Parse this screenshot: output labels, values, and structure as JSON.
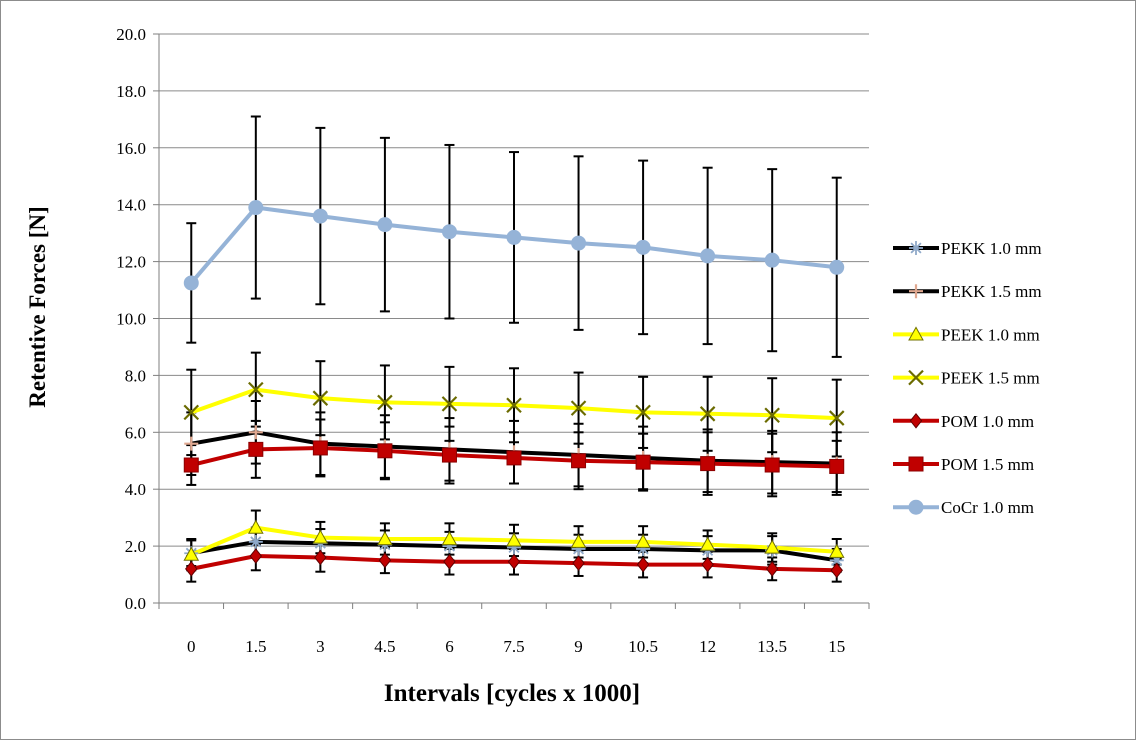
{
  "chart_data": {
    "type": "line",
    "title": "",
    "xlabel": "Intervals [cycles x 1000]",
    "ylabel": "Retentive Forces [N]",
    "categories": [
      "0",
      "1.5",
      "3",
      "4.5",
      "6",
      "7.5",
      "9",
      "10.5",
      "12",
      "13.5",
      "15"
    ],
    "ylim": [
      0,
      20
    ],
    "yticks": [
      "0.0",
      "2.0",
      "4.0",
      "6.0",
      "8.0",
      "10.0",
      "12.0",
      "14.0",
      "16.0",
      "18.0",
      "20.0"
    ],
    "grid": "horizontal",
    "legend_position": "right",
    "series": [
      {
        "name": "PEKK 1.0 mm",
        "color": "#000000",
        "marker": "asterisk",
        "marker_color": "#8fa9c9",
        "values": [
          1.75,
          2.15,
          2.1,
          2.05,
          2.0,
          1.95,
          1.9,
          1.9,
          1.85,
          1.85,
          1.5
        ],
        "error": [
          0.45,
          0.5,
          0.5,
          0.5,
          0.5,
          0.5,
          0.5,
          0.5,
          0.5,
          0.5,
          0.4
        ]
      },
      {
        "name": "PEKK 1.5 mm",
        "color": "#000000",
        "marker": "plus",
        "marker_color": "#e0a890",
        "values": [
          5.6,
          6.0,
          5.6,
          5.5,
          5.4,
          5.3,
          5.2,
          5.1,
          5.0,
          4.95,
          4.9
        ],
        "error": [
          1.1,
          1.1,
          1.1,
          1.1,
          1.1,
          1.1,
          1.1,
          1.1,
          1.1,
          1.1,
          1.1
        ]
      },
      {
        "name": "PEEK 1.0 mm",
        "color": "#ffff00",
        "marker": "triangle",
        "marker_color": "#ffff00",
        "values": [
          1.7,
          2.65,
          2.3,
          2.25,
          2.25,
          2.2,
          2.15,
          2.15,
          2.05,
          1.95,
          1.8
        ],
        "error": [
          0.55,
          0.6,
          0.55,
          0.55,
          0.55,
          0.55,
          0.55,
          0.55,
          0.5,
          0.5,
          0.45
        ]
      },
      {
        "name": "PEEK 1.5 mm",
        "color": "#ffff00",
        "marker": "cross",
        "marker_color": "#6b6b00",
        "values": [
          6.7,
          7.5,
          7.2,
          7.05,
          7.0,
          6.95,
          6.85,
          6.7,
          6.65,
          6.6,
          6.5
        ],
        "error": [
          1.5,
          1.3,
          1.3,
          1.3,
          1.3,
          1.3,
          1.25,
          1.25,
          1.3,
          1.3,
          1.35
        ]
      },
      {
        "name": "POM 1.0 mm",
        "color": "#c00000",
        "marker": "diamond",
        "marker_color": "#c00000",
        "values": [
          1.2,
          1.65,
          1.6,
          1.5,
          1.45,
          1.45,
          1.4,
          1.35,
          1.35,
          1.2,
          1.15
        ],
        "error": [
          0.45,
          0.5,
          0.5,
          0.45,
          0.45,
          0.45,
          0.45,
          0.45,
          0.45,
          0.4,
          0.4
        ]
      },
      {
        "name": "POM 1.5 mm",
        "color": "#c00000",
        "marker": "square",
        "marker_color": "#c00000",
        "values": [
          4.85,
          5.4,
          5.45,
          5.35,
          5.2,
          5.1,
          5.0,
          4.95,
          4.9,
          4.85,
          4.8
        ],
        "error": [
          0.7,
          1.0,
          1.0,
          1.0,
          1.0,
          0.9,
          1.0,
          1.0,
          1.1,
          1.1,
          0.9
        ]
      },
      {
        "name": "CoCr 1.0 mm",
        "color": "#95b3d7",
        "marker": "circle",
        "marker_color": "#95b3d7",
        "values": [
          11.25,
          13.9,
          13.6,
          13.3,
          13.05,
          12.85,
          12.65,
          12.5,
          12.2,
          12.05,
          11.8
        ],
        "error": [
          2.1,
          3.2,
          3.1,
          3.05,
          3.05,
          3.0,
          3.05,
          3.05,
          3.1,
          3.2,
          3.15
        ]
      }
    ]
  }
}
